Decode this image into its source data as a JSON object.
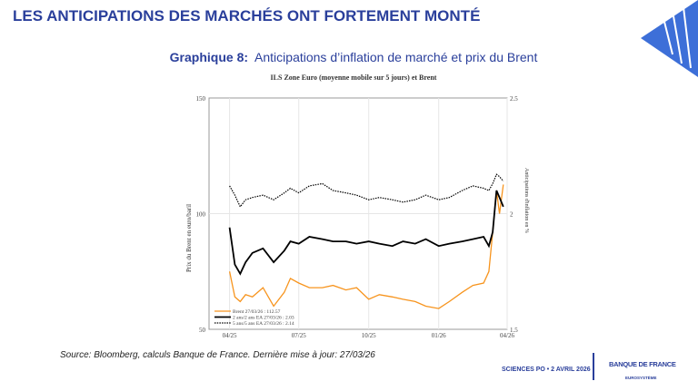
{
  "header": {
    "title": "LES ANTICIPATIONS DES MARCHÉS ONT FORTEMENT MONTÉ"
  },
  "subtitle": {
    "prefix": "Graphique 8:",
    "text": "Anticipations d’inflation de marché et prix du Brent"
  },
  "source": "Source: Bloomberg, calculs Banque de France. Dernière mise à jour: 27/03/26",
  "footer": {
    "event": "SCIENCES PO • 2 AVRIL 2026",
    "logo": "BANQUE DE FRANCE",
    "logo_sub": "EUROSYSTÈME"
  },
  "colors": {
    "brand": "#2a3f9b",
    "brent": "#f7941d",
    "y2": "#000000",
    "y5": "#000000"
  },
  "chart_data": {
    "type": "line",
    "title": "ILS Zone Euro (moyenne mobile sur 5 jours) et Brent",
    "ylabel": "Prix du Brent en euro/baril",
    "y2label": "Anticipations d'inflation en %",
    "ylim": [
      50,
      150
    ],
    "y2lim": [
      1.5,
      2.5
    ],
    "yticks": [
      "50",
      "100",
      "150"
    ],
    "y2ticks": [
      "1.5",
      "2",
      "2.5"
    ],
    "xticks": [
      "04/25",
      "07/25",
      "10/25",
      "01/26",
      "04/26"
    ],
    "xlim": [
      "2025-03-05",
      "2026-04-01"
    ],
    "grid": true,
    "legend": "bottom-left",
    "x": [
      "2025-04-01",
      "2025-04-08",
      "2025-04-15",
      "2025-04-22",
      "2025-05-01",
      "2025-05-15",
      "2025-05-29",
      "2025-06-12",
      "2025-06-20",
      "2025-07-01",
      "2025-07-15",
      "2025-08-01",
      "2025-08-15",
      "2025-09-01",
      "2025-09-15",
      "2025-10-01",
      "2025-10-15",
      "2025-11-01",
      "2025-11-15",
      "2025-12-01",
      "2025-12-15",
      "2026-01-01",
      "2026-01-15",
      "2026-02-01",
      "2026-02-15",
      "2026-03-01",
      "2026-03-08",
      "2026-03-13",
      "2026-03-18",
      "2026-03-22",
      "2026-03-27"
    ],
    "series": [
      {
        "name": "Brent 27/03/26 : 112.57",
        "axis": "left",
        "style": "solid-orange",
        "values": [
          75,
          64,
          62,
          65,
          64,
          68,
          60,
          66,
          72,
          70,
          68,
          68,
          69,
          67,
          68,
          63,
          65,
          64,
          63,
          62,
          60,
          59,
          62,
          66,
          69,
          70,
          75,
          92,
          110,
          100,
          112.57
        ]
      },
      {
        "name": "2 ans/2 ans EA  27/03/26 : 2.03",
        "axis": "right",
        "style": "solid-black",
        "values": [
          1.94,
          1.78,
          1.74,
          1.79,
          1.83,
          1.85,
          1.79,
          1.84,
          1.88,
          1.87,
          1.9,
          1.89,
          1.88,
          1.88,
          1.87,
          1.88,
          1.87,
          1.86,
          1.88,
          1.87,
          1.89,
          1.86,
          1.87,
          1.88,
          1.89,
          1.9,
          1.86,
          1.92,
          2.1,
          2.07,
          2.03
        ]
      },
      {
        "name": "5 ans/5 ans EA  27/03/26 : 2.14",
        "axis": "right",
        "style": "dotted-black",
        "values": [
          2.12,
          2.08,
          2.03,
          2.06,
          2.07,
          2.08,
          2.06,
          2.09,
          2.11,
          2.09,
          2.12,
          2.13,
          2.1,
          2.09,
          2.08,
          2.06,
          2.07,
          2.06,
          2.05,
          2.06,
          2.08,
          2.06,
          2.07,
          2.1,
          2.12,
          2.11,
          2.1,
          2.13,
          2.17,
          2.16,
          2.14
        ]
      }
    ]
  }
}
